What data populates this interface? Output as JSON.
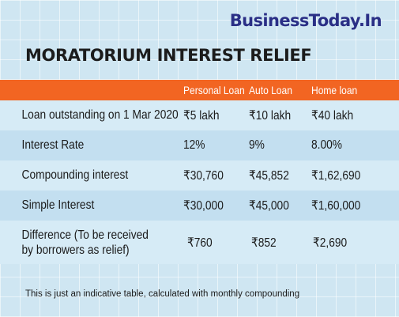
{
  "brand": "BusinessToday.In",
  "title": "MORATORIUM INTEREST RELIEF",
  "table": {
    "headers": [
      "",
      "Personal Loan",
      "Auto Loan",
      "Home loan"
    ],
    "rows": [
      [
        "Loan outstanding on 1 Mar 2020",
        "₹5 lakh",
        "₹10 lakh",
        "₹40 lakh"
      ],
      [
        "Interest Rate",
        "12%",
        "9%",
        "8.00%"
      ],
      [
        "Compounding interest",
        "₹30,760",
        "₹45,852",
        "₹1,62,690"
      ],
      [
        "Simple Interest",
        "₹30,000",
        "₹45,000",
        "₹1,60,000"
      ],
      [
        "Difference (To be received by borrowers as relief)",
        "₹760",
        "₹852",
        "₹2,690"
      ]
    ]
  },
  "footnote": "This is just an indicative table, calculated with monthly compounding",
  "colors": {
    "header_bg": "#f26522",
    "brand": "#2a2f86",
    "background": "#cfe6f2"
  }
}
